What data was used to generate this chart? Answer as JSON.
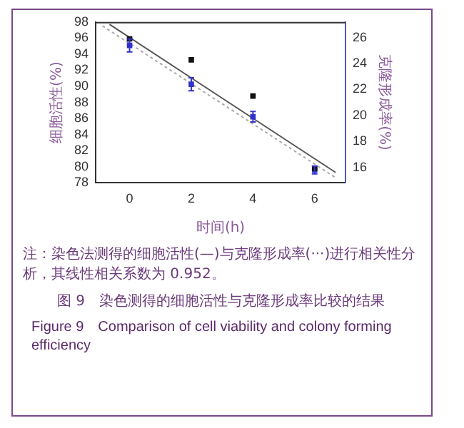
{
  "chart_data": {
    "type": "scatter",
    "xlabel": "时间(h)",
    "ylabel": "细胞活性(%)",
    "y2label": "克隆形成率(%)",
    "x": [
      0,
      2,
      4,
      6
    ],
    "xlim": [
      -1.1,
      7
    ],
    "xticks": [
      0,
      2,
      4,
      6
    ],
    "ylim": [
      78,
      98
    ],
    "yticks": [
      78,
      80,
      82,
      84,
      86,
      88,
      90,
      92,
      94,
      96,
      98
    ],
    "y2lim": [
      14.8,
      27.2
    ],
    "y2ticks": [
      16,
      18,
      20,
      22,
      24,
      26
    ],
    "grid": false,
    "marker": "square",
    "series": [
      {
        "type": "scatter",
        "color": "#111111",
        "values": [
          95.9,
          93.3,
          88.8,
          79.8
        ]
      },
      {
        "type": "scatter",
        "axis": "y2",
        "color": "#3333cc",
        "values": [
          25.4,
          22.4,
          19.9,
          15.8
        ],
        "errors": [
          0.5,
          0.5,
          0.4,
          0.3
        ]
      },
      {
        "type": "line",
        "x": [
          -0.65,
          6.68
        ],
        "color": "#555555",
        "line_style": "solid",
        "marker": "none",
        "values": [
          97.7,
          79.3
        ]
      },
      {
        "type": "line",
        "axis": "y2",
        "x": [
          -0.88,
          6.68
        ],
        "color": "#aaaaaa",
        "line_style": "dotted",
        "marker": "none",
        "values": [
          26.9,
          15.2
        ]
      }
    ],
    "annotations": [
      "注：染色法测得的细胞活性(—)与克隆形成率(···)进行相关性分析，其线性相关系数为 0.952。",
      "图 9　染色测得的细胞活性与克隆形成率比较的结果",
      "Figure 9　Comparison of cell viability and colony forming efficiency"
    ]
  }
}
